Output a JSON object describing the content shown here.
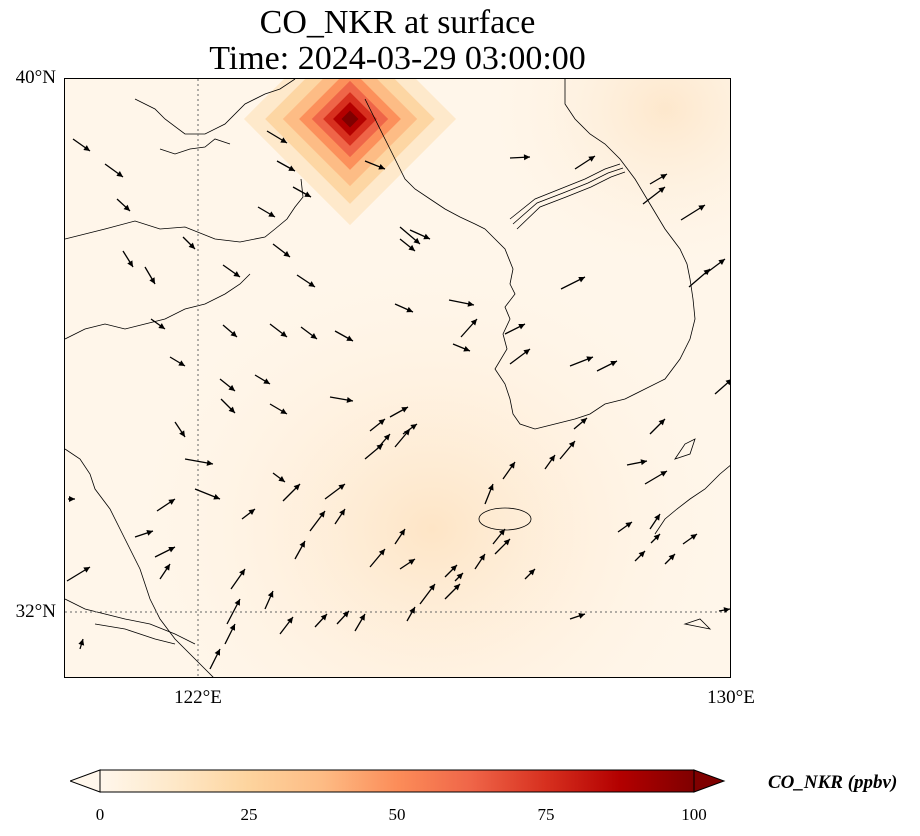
{
  "title": {
    "line1": "CO_NKR at surface",
    "line2": "Time: 2024-03-29 03:00:00"
  },
  "map": {
    "lon_range": [
      119.6,
      130.0
    ],
    "lat_range": [
      31.0,
      40.0
    ],
    "lat_ticks": [
      {
        "value": 40,
        "label": "40°N"
      },
      {
        "value": 32,
        "label": "32°N"
      }
    ],
    "lon_ticks": [
      {
        "value": 122,
        "label": "122°E"
      },
      {
        "value": 130,
        "label": "130°E"
      }
    ],
    "gridlines_at": {
      "lon": [
        122
      ],
      "lat": [
        32
      ]
    },
    "field": "CO_NKR",
    "units": "ppbv",
    "plume_center": {
      "lon": 124.0,
      "lat": 39.5,
      "peak_value": 100
    },
    "wind_vectors": "arrows indicating surface wind direction (generally northwest to southeast in north, southwest to northeast in south)"
  },
  "colorbar": {
    "label": "CO_NKR (ppbv)",
    "min": 0,
    "max": 100,
    "extend": "both",
    "ticks": [
      {
        "value": 0,
        "label": "0"
      },
      {
        "value": 25,
        "label": "25"
      },
      {
        "value": 50,
        "label": "50"
      },
      {
        "value": 75,
        "label": "75"
      },
      {
        "value": 100,
        "label": "100"
      }
    ],
    "colormap": "OrRd",
    "colors": [
      "#fff7ec",
      "#fee8c8",
      "#fdd49e",
      "#fdbb84",
      "#fc8d59",
      "#ef6548",
      "#d7301f",
      "#b30000",
      "#7f0000"
    ]
  }
}
